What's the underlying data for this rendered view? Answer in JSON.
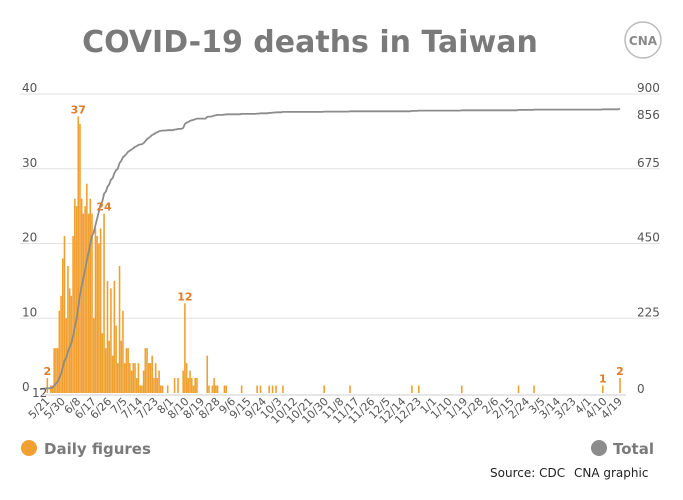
{
  "title": "COVID-19 deaths in Taiwan",
  "logo": {
    "text": "CNA",
    "color": "#8a8a8a"
  },
  "colors": {
    "daily": "#f0a030",
    "daily_label": "#e07b28",
    "total": "#8c8c8c",
    "grid": "#e2e2e2"
  },
  "legend": {
    "daily": "Daily figures",
    "total": "Total"
  },
  "source": "Source: CDC",
  "credit": "CNA graphic",
  "chart_data": {
    "type": "bar+line",
    "title": "COVID-19 deaths in Taiwan",
    "grid": true,
    "legend_position": "bottom",
    "left_axis": {
      "ylim": [
        0,
        40
      ],
      "ticks": [
        "0",
        "10",
        "20",
        "30",
        "40"
      ]
    },
    "right_axis": {
      "ylim": [
        0,
        900
      ],
      "ticks": [
        "0",
        "225",
        "450",
        "675",
        "900"
      ]
    },
    "x_ticks": [
      "5/21",
      "5/30",
      "6/8",
      "6/17",
      "6/26",
      "7/5",
      "7/14",
      "7/23",
      "8/1",
      "8/10",
      "8/19",
      "8/28",
      "9/6",
      "9/15",
      "9/24",
      "10/3",
      "10/12",
      "10/21",
      "10/30",
      "11/8",
      "11/17",
      "11/26",
      "12/5",
      "12/14",
      "12/23",
      "1/1",
      "1/10",
      "1/19",
      "1/28",
      "2/6",
      "2/15",
      "2/24",
      "3/5",
      "3/14",
      "3/23",
      "4/1",
      "4/10",
      "4/19"
    ],
    "series": [
      {
        "name": "Daily figures",
        "type": "bar",
        "axis": "left",
        "points": [
          [
            "5/21",
            2
          ],
          [
            "5/23",
            1
          ],
          [
            "5/24",
            1
          ],
          [
            "5/25",
            6
          ],
          [
            "5/26",
            6
          ],
          [
            "5/27",
            6
          ],
          [
            "5/28",
            11
          ],
          [
            "5/29",
            13
          ],
          [
            "5/30",
            18
          ],
          [
            "5/31",
            21
          ],
          [
            "6/1",
            10
          ],
          [
            "6/2",
            17
          ],
          [
            "6/3",
            14
          ],
          [
            "6/4",
            13
          ],
          [
            "6/5",
            21
          ],
          [
            "6/6",
            26
          ],
          [
            "6/7",
            25
          ],
          [
            "6/8",
            37
          ],
          [
            "6/9",
            36
          ],
          [
            "6/10",
            26
          ],
          [
            "6/11",
            24
          ],
          [
            "6/12",
            25
          ],
          [
            "6/13",
            28
          ],
          [
            "6/14",
            24
          ],
          [
            "6/15",
            26
          ],
          [
            "6/16",
            24
          ],
          [
            "6/17",
            10
          ],
          [
            "6/18",
            22
          ],
          [
            "6/19",
            21
          ],
          [
            "6/20",
            20
          ],
          [
            "6/21",
            22
          ],
          [
            "6/22",
            8
          ],
          [
            "6/23",
            24
          ],
          [
            "6/24",
            6
          ],
          [
            "6/25",
            15
          ],
          [
            "6/26",
            7
          ],
          [
            "6/27",
            14
          ],
          [
            "6/28",
            5
          ],
          [
            "6/29",
            15
          ],
          [
            "6/30",
            9
          ],
          [
            "7/1",
            4
          ],
          [
            "7/2",
            17
          ],
          [
            "7/3",
            7
          ],
          [
            "7/4",
            11
          ],
          [
            "7/5",
            4
          ],
          [
            "7/6",
            6
          ],
          [
            "7/7",
            6
          ],
          [
            "7/8",
            4
          ],
          [
            "7/9",
            3
          ],
          [
            "7/10",
            4
          ],
          [
            "7/11",
            4
          ],
          [
            "7/12",
            2
          ],
          [
            "7/13",
            4
          ],
          [
            "7/14",
            1
          ],
          [
            "7/15",
            1
          ],
          [
            "7/16",
            3
          ],
          [
            "7/17",
            6
          ],
          [
            "7/18",
            6
          ],
          [
            "7/19",
            4
          ],
          [
            "7/20",
            4
          ],
          [
            "7/21",
            5
          ],
          [
            "7/22",
            2
          ],
          [
            "7/23",
            4
          ],
          [
            "7/24",
            2
          ],
          [
            "7/25",
            3
          ],
          [
            "7/26",
            1
          ],
          [
            "7/27",
            1
          ],
          [
            "7/30",
            1
          ],
          [
            "8/3",
            2
          ],
          [
            "8/5",
            2
          ],
          [
            "8/8",
            3
          ],
          [
            "8/9",
            12
          ],
          [
            "8/10",
            4
          ],
          [
            "8/11",
            2
          ],
          [
            "8/12",
            3
          ],
          [
            "8/13",
            2
          ],
          [
            "8/14",
            1
          ],
          [
            "8/15",
            2
          ],
          [
            "8/16",
            2
          ],
          [
            "8/22",
            5
          ],
          [
            "8/23",
            1
          ],
          [
            "8/25",
            1
          ],
          [
            "8/26",
            2
          ],
          [
            "8/27",
            1
          ],
          [
            "8/28",
            1
          ],
          [
            "9/1",
            1
          ],
          [
            "9/2",
            1
          ],
          [
            "9/11",
            1
          ],
          [
            "9/20",
            1
          ],
          [
            "9/22",
            1
          ],
          [
            "9/27",
            1
          ],
          [
            "9/29",
            1
          ],
          [
            "10/1",
            1
          ],
          [
            "10/5",
            1
          ],
          [
            "10/29",
            1
          ],
          [
            "11/13",
            1
          ],
          [
            "12/19",
            1
          ],
          [
            "12/23",
            1
          ],
          [
            "1/17",
            1
          ],
          [
            "2/19",
            1
          ],
          [
            "2/28",
            1
          ],
          [
            "4/9",
            1
          ],
          [
            "4/19",
            2
          ]
        ]
      },
      {
        "name": "Total",
        "type": "line",
        "axis": "right",
        "start": 12,
        "end": 856
      }
    ],
    "annotations": [
      {
        "date": "5/21",
        "text": "2"
      },
      {
        "date": "6/8",
        "text": "37"
      },
      {
        "date": "6/23",
        "text": "24"
      },
      {
        "date": "8/9",
        "text": "12"
      },
      {
        "date": "4/9",
        "text": "1"
      },
      {
        "date": "4/19",
        "text": "2"
      }
    ],
    "total_labels": {
      "start": "12",
      "end": "856"
    }
  }
}
